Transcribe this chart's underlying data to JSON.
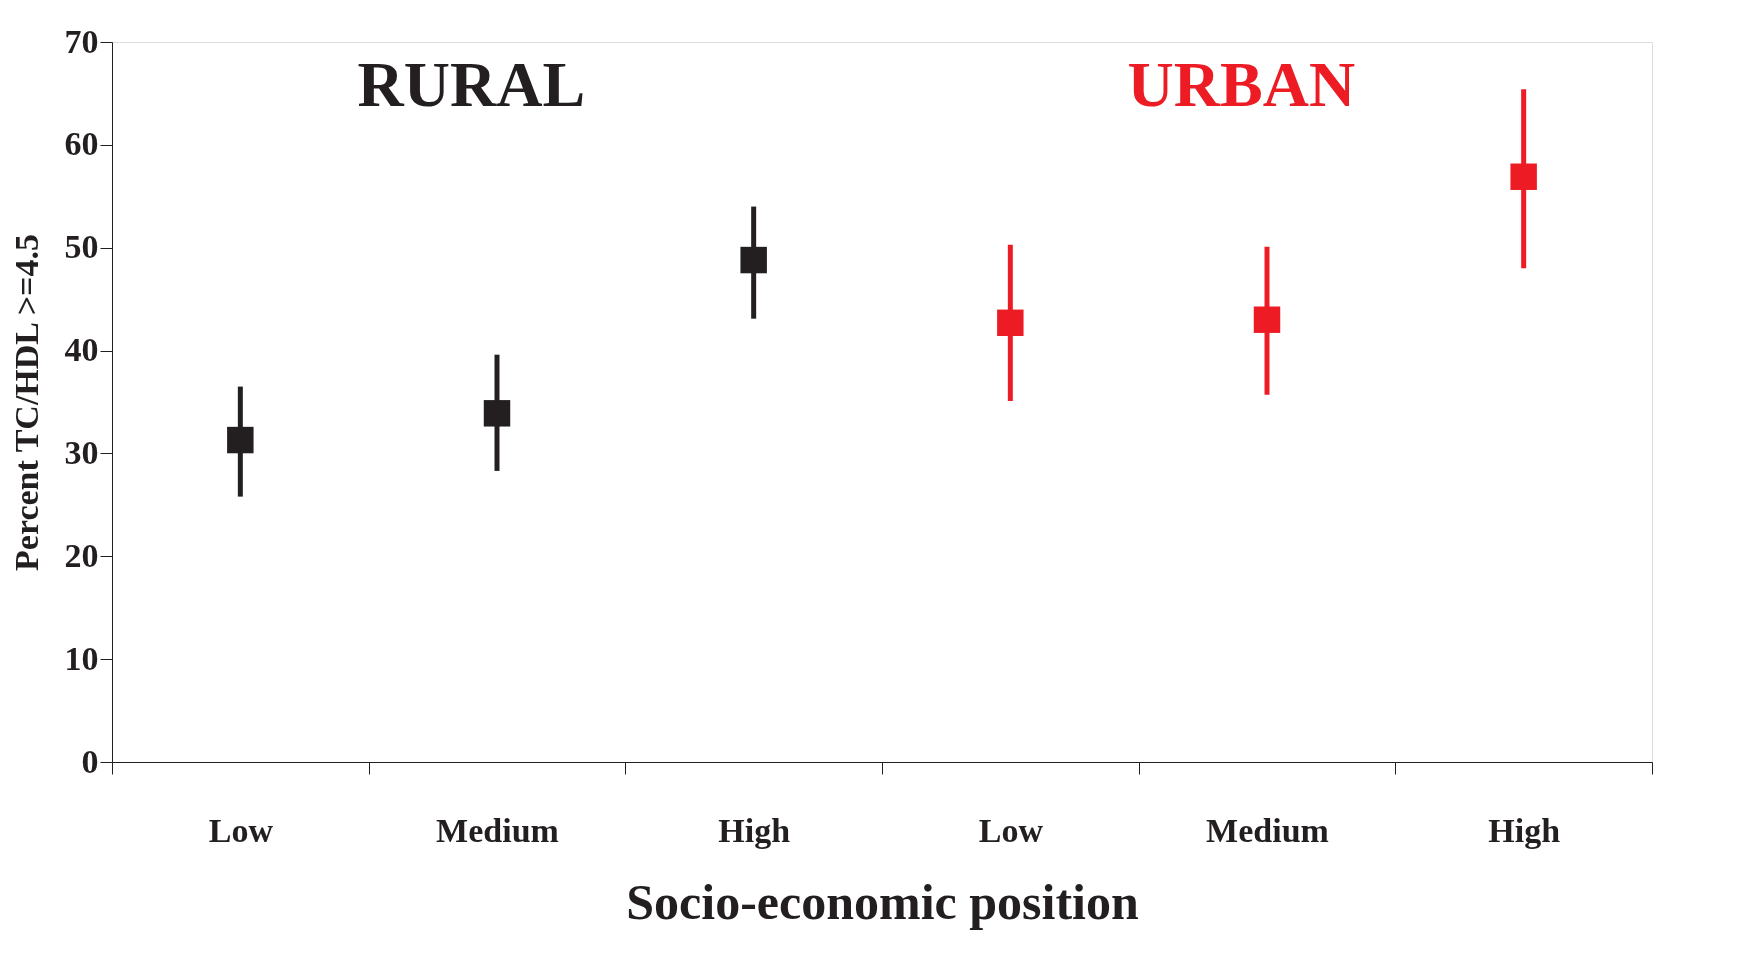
{
  "chart_data": {
    "type": "scatter",
    "xlabel": "Socio-economic position",
    "ylabel": "Percent TC/HDL >=4.5",
    "categories": [
      "Low",
      "Medium",
      "High",
      "Low",
      "Medium",
      "High"
    ],
    "ylim": [
      0,
      70
    ],
    "yticks": [
      0,
      10,
      20,
      30,
      40,
      50,
      60,
      70
    ],
    "grid": false,
    "marker": "square",
    "series": [
      {
        "name": "RURAL",
        "color": "#231f20",
        "values": [
          31.3,
          33.9,
          48.8,
          null,
          null,
          null
        ],
        "errors": [
          [
            25.8,
            36.5
          ],
          [
            28.3,
            39.6
          ],
          [
            43.1,
            54.0
          ],
          null,
          null,
          null
        ]
      },
      {
        "name": "URBAN",
        "color": "#ed1c24",
        "values": [
          null,
          null,
          null,
          42.7,
          43.0,
          56.9
        ],
        "errors": [
          null,
          null,
          null,
          [
            35.1,
            50.3
          ],
          [
            35.7,
            50.1
          ],
          [
            48.0,
            65.4
          ]
        ]
      }
    ]
  }
}
